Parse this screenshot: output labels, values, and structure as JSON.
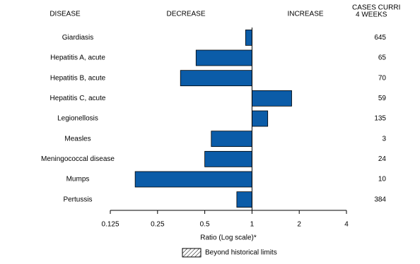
{
  "chart_data": {
    "type": "bar",
    "orientation": "horizontal",
    "headers": {
      "disease": "DISEASE",
      "decrease": "DECREASE",
      "increase": "INCREASE",
      "cases": [
        "CASES CURRI",
        "4 WEEKS"
      ]
    },
    "categories": [
      "Giardiasis",
      "Hepatitis A, acute",
      "Hepatitis B, acute",
      "Hepatitis C, acute",
      "Legionellosis",
      "Measles",
      "Meningococcal disease",
      "Mumps",
      "Pertussis"
    ],
    "values": [
      0.91,
      0.44,
      0.35,
      1.79,
      1.26,
      0.55,
      0.5,
      0.18,
      0.8
    ],
    "cases": [
      645,
      65,
      70,
      59,
      135,
      3,
      24,
      10,
      384
    ],
    "color": "#0b5ca8",
    "xlabel": "Ratio (Log scale)*",
    "xscale": "log",
    "xlim": [
      0.125,
      4
    ],
    "xticks": [
      0.125,
      0.25,
      0.5,
      1,
      2,
      4
    ],
    "legend": "Beyond historical limits"
  }
}
